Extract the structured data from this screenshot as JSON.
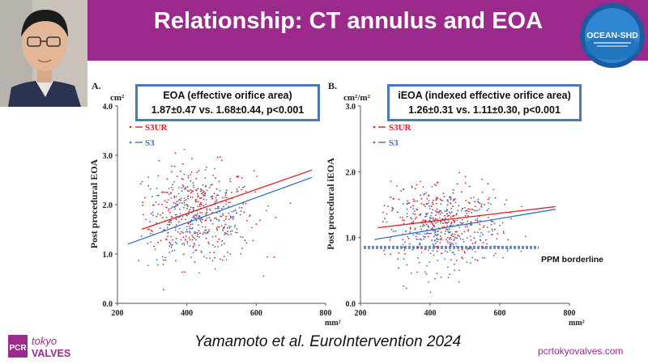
{
  "slide": {
    "title": "Relationship: CT annulus and EOA",
    "logo_text": "OCEAN-SHD",
    "citation": "Yamamoto et al. EuroIntervention 2024",
    "site": "pcrtokyovalves.com",
    "brand": {
      "pcr": "PCR",
      "tokyo": "tokyo",
      "valves": "VALVES"
    },
    "colors": {
      "header": "#9c2a8c",
      "s3ur": "#e02020",
      "s3": "#3a6fc0",
      "callout_border": "#4a78b8"
    }
  },
  "panel_a": {
    "letter": "A.",
    "unit_y": "cm²",
    "unit_x": "mm²",
    "ylabel": "Post procedural EOA",
    "callout_line1": "EOA (effective orifice area)",
    "callout_line2": "1.87±0.47 vs. 1.68±0.44, p<0.001",
    "legend_s3ur": "S3UR",
    "legend_s3": "S3"
  },
  "panel_b": {
    "letter": "B.",
    "unit_y": "cm²/m²",
    "unit_x": "mm²",
    "ylabel": "Post procedural iEOA",
    "callout_line1": "iEOA (indexed effective orifice area)",
    "callout_line2": "1.26±0.31 vs. 1.11±0.30, p<0.001",
    "legend_s3ur": "S3UR",
    "legend_s3": "S3",
    "threshold_label": "PPM borderline"
  },
  "chart_data": [
    {
      "type": "scatter",
      "title": "",
      "xlabel": "mm²",
      "ylabel": "Post procedural EOA",
      "xlim": [
        200,
        800
      ],
      "ylim": [
        0.0,
        4.0
      ],
      "xticks": [
        "200",
        "400",
        "600",
        "800"
      ],
      "yticks": [
        "0.0",
        "1.0",
        "2.0",
        "3.0",
        "4.0"
      ],
      "legend": "top-left",
      "series": [
        {
          "name": "S3UR",
          "color": "#e02020",
          "cluster": {
            "x_mean": 420,
            "x_sd": 85,
            "y_mean": 1.87,
            "y_sd": 0.47,
            "n": 300
          },
          "fit_line": [
            [
              270,
              1.5
            ],
            [
              760,
              2.7
            ]
          ]
        },
        {
          "name": "S3",
          "color": "#3a6fc0",
          "cluster": {
            "x_mean": 430,
            "x_sd": 85,
            "y_mean": 1.68,
            "y_sd": 0.44,
            "n": 300
          },
          "fit_line": [
            [
              230,
              1.2
            ],
            [
              760,
              2.55
            ]
          ]
        }
      ]
    },
    {
      "type": "scatter",
      "title": "",
      "xlabel": "mm²",
      "ylabel": "Post procedural iEOA",
      "xlim": [
        200,
        800
      ],
      "ylim": [
        0.0,
        3.0
      ],
      "xticks": [
        "200",
        "400",
        "600",
        "800"
      ],
      "yticks": [
        "0.0",
        "1.0",
        "2.0",
        "3.0"
      ],
      "legend": "top-left",
      "threshold": {
        "y": 0.85,
        "label": "PPM borderline"
      },
      "series": [
        {
          "name": "S3UR",
          "color": "#e02020",
          "cluster": {
            "x_mean": 430,
            "x_sd": 85,
            "y_mean": 1.26,
            "y_sd": 0.31,
            "n": 300
          },
          "fit_line": [
            [
              250,
              1.15
            ],
            [
              760,
              1.47
            ]
          ]
        },
        {
          "name": "S3",
          "color": "#3a6fc0",
          "cluster": {
            "x_mean": 440,
            "x_sd": 85,
            "y_mean": 1.11,
            "y_sd": 0.3,
            "n": 300
          },
          "fit_line": [
            [
              240,
              0.97
            ],
            [
              760,
              1.43
            ]
          ]
        }
      ]
    }
  ]
}
